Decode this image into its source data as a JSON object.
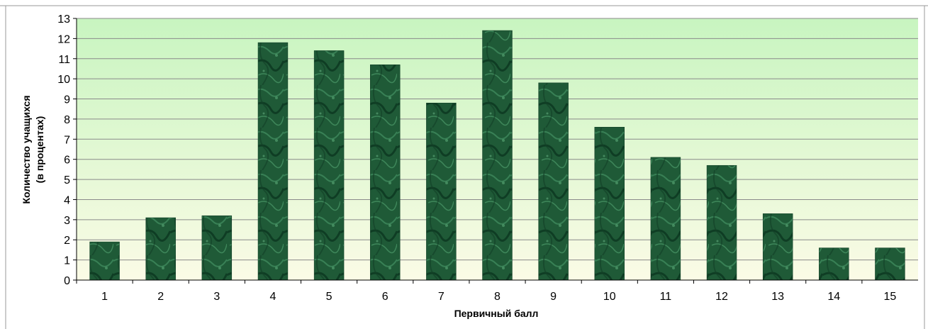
{
  "header_text": "",
  "chart_data": {
    "type": "bar",
    "title": "",
    "xlabel": "Первичный балл",
    "ylabel": "Количество  учащихся",
    "ylabel_line2": "(в процентах)",
    "categories": [
      "1",
      "2",
      "3",
      "4",
      "5",
      "6",
      "7",
      "8",
      "9",
      "10",
      "11",
      "12",
      "13",
      "14",
      "15"
    ],
    "values": [
      1.9,
      3.1,
      3.2,
      11.8,
      11.4,
      10.7,
      8.8,
      12.4,
      9.8,
      7.6,
      6.1,
      5.7,
      3.3,
      1.6,
      1.6
    ],
    "ylim": [
      0,
      13
    ],
    "yticks": [
      0,
      1,
      2,
      3,
      4,
      5,
      6,
      7,
      8,
      9,
      10,
      11,
      12,
      13
    ],
    "grid": true,
    "legend": "none",
    "colors": {
      "bar": "#1f5a37",
      "bar_dark": "#0d3a22",
      "bar_light": "#3f8a5d",
      "plot_bg_top": "#c8f5c0",
      "plot_bg_bottom": "#fbfbe6",
      "grid": "#8a8a8a"
    }
  }
}
